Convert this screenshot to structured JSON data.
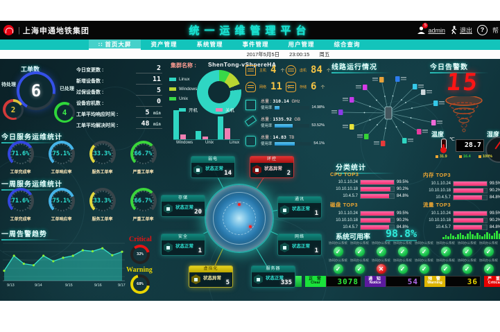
{
  "header": {
    "org": "上海申通地铁集团",
    "sep": "|",
    "title": "统一运维管理平台",
    "user": "admin",
    "badge": "5",
    "logout": "退出",
    "help": "帮",
    "help_q": "?"
  },
  "nav": {
    "home_icon": "∷",
    "tabs": [
      {
        "label": "首页大屏",
        "active": true
      },
      {
        "label": "资产管理",
        "active": false
      },
      {
        "label": "系统管理",
        "active": false
      },
      {
        "label": "事件管理",
        "active": false
      },
      {
        "label": "用户管理",
        "active": false
      },
      {
        "label": "综合查询",
        "active": false
      }
    ],
    "date": "2017年5月5日",
    "time": "23:00:15",
    "weekday": "周五"
  },
  "workorder": {
    "title": "工单数",
    "total": "6",
    "pending_label": "待处理",
    "pending": "2",
    "done_label": "已处理",
    "done": "4"
  },
  "kpis": [
    {
      "label": "今日变更数 :",
      "value": "2",
      "unit": ""
    },
    {
      "label": "新增设备数 :",
      "value": "11",
      "unit": ""
    },
    {
      "label": "过保设备数 :",
      "value": "5",
      "unit": ""
    },
    {
      "label": "设备宕机数 :",
      "value": "0",
      "unit": ""
    },
    {
      "label": "工单平均响应时间 :",
      "value": "5",
      "unit": "min"
    },
    {
      "label": "工单平均解决时间 :",
      "value": "48",
      "unit": "min"
    }
  ],
  "today_stats": {
    "title": "今日服务运维统计",
    "gauges": [
      {
        "value": "71.6%",
        "label": "工单完成率",
        "color": "#3347e0",
        "pct": 71.6
      },
      {
        "value": "75.1%",
        "label": "工单响应率",
        "color": "#45b4e8",
        "pct": 75.1
      },
      {
        "value": "33.3%",
        "label": "服务工单率",
        "color": "#e3d83c",
        "pct": 33.3
      },
      {
        "value": "66.7%",
        "label": "严重工单率",
        "color": "#3bd63b",
        "pct": 66.7
      }
    ]
  },
  "week_stats": {
    "title": "一周服务运维统计",
    "gauges": [
      {
        "value": "71.6%",
        "label": "工单完成率",
        "color": "#3347e0",
        "pct": 71.6
      },
      {
        "value": "75.1%",
        "label": "工单响应率",
        "color": "#45b4e8",
        "pct": 75.1
      },
      {
        "value": "33.3%",
        "label": "服务工单率",
        "color": "#e3d83c",
        "pct": 33.3
      },
      {
        "value": "66.7%",
        "label": "严重工单率",
        "color": "#3bd63b",
        "pct": 66.7
      }
    ]
  },
  "trend": {
    "title": "一周告警趋势",
    "type": "area",
    "labels": [
      "9/13",
      "9/14",
      "9/15",
      "9/16",
      "9/17"
    ],
    "values": [
      2,
      5,
      3.4,
      3.1,
      5,
      3.9,
      4.6,
      5,
      6.1,
      5.9,
      6.5,
      5.1,
      5.8
    ]
  },
  "rings": {
    "critical_label": "Critical",
    "critical": "32%",
    "critical_pct": 32,
    "critical_color": "#e81313",
    "warning_label": "Warning",
    "warning": "68%",
    "warning_pct": 68,
    "warning_color": "#e8d500"
  },
  "cluster": {
    "name_label": "集群名称 :",
    "name": "ShenTong-vShpereHA",
    "legend": [
      {
        "label": "Linux",
        "color": "#2fd6c3"
      },
      {
        "label": "Windows",
        "color": "#b9d631"
      },
      {
        "label": "Unix",
        "color": "#38d848"
      }
    ],
    "donut": {
      "type": "pie",
      "slices": [
        {
          "label": "Unix",
          "value": 8,
          "color": "#38d848"
        },
        {
          "label": "Windows",
          "value": 11,
          "color": "#b9d631"
        },
        {
          "label": "关机",
          "value": 4,
          "color": "#11333b"
        },
        {
          "label": "Linux",
          "value": 77,
          "color": "#2fd6c3"
        }
      ]
    },
    "bar_legend": [
      {
        "label": "开机",
        "color": "#2fd6c3"
      },
      {
        "label": "关机",
        "color": "#ef7fb2"
      }
    ],
    "bars": {
      "type": "bar",
      "categories": [
        "Windows",
        "Unix",
        "Linux"
      ],
      "series": [
        {
          "name": "开机",
          "color": "#2fd6c3",
          "values": [
            42,
            12,
            33
          ]
        },
        {
          "name": "关机",
          "color": "#ef7fb2",
          "values": [
            7,
            4,
            16
          ]
        }
      ]
    },
    "counts": [
      {
        "label": "主机",
        "value": "4",
        "unit": "个",
        "icon": "host-icon",
        "shape": ""
      },
      {
        "label": "虚机",
        "value": "84",
        "unit": "个",
        "icon": "cloud-icon",
        "shape": "cloud"
      },
      {
        "label": "网络",
        "value": "11",
        "unit": "个",
        "icon": "network-icon",
        "shape": "round"
      },
      {
        "label": "存储",
        "value": "6",
        "unit": "个",
        "icon": "storage-icon",
        "shape": "db"
      }
    ],
    "resources": [
      {
        "icon": "cpu-icon",
        "total_label": "总量 :",
        "total": "310.14",
        "unit": "GHz",
        "usage_label": "使用率",
        "usage": "14.98%",
        "pct": 15
      },
      {
        "icon": "memory-icon",
        "total_label": "总量 :",
        "total": "1535.92",
        "unit": "GB",
        "usage_label": "使用率",
        "usage": "53.52%",
        "pct": 53
      },
      {
        "icon": "disk-icon",
        "total_label": "总量 :",
        "total": "14.83",
        "unit": "TB",
        "usage_label": "使用率",
        "usage": "54.1%",
        "pct": 54
      }
    ]
  },
  "topology": {
    "nodes": [
      {
        "title": "弱电",
        "status": "状态正常",
        "value": "14",
        "state": "normal"
      },
      {
        "title": "环控",
        "status": "状态异常",
        "value": "2",
        "state": "alarm"
      },
      {
        "title": "存储",
        "status": "状态正常",
        "value": "20",
        "state": "normal"
      },
      {
        "title": "通讯",
        "status": "状态正常",
        "value": "1",
        "state": "normal"
      },
      {
        "title": "安全",
        "status": "状态正常",
        "value": "1",
        "state": "normal"
      },
      {
        "title": "网络",
        "status": "状态正常",
        "value": "1",
        "state": "normal"
      },
      {
        "title": "虚拟化",
        "status": "状态异常",
        "value": "5",
        "state": "warn"
      },
      {
        "title": "服务器",
        "status": "状态正常",
        "value": "335",
        "state": "normal"
      }
    ]
  },
  "lines_panel": {
    "title": "线路运行情况",
    "node_colors": [
      "#e8a23a",
      "#2d7df0",
      "#d63ae8",
      "#35c8e8",
      "#c23ae8",
      "#8a3ae8",
      "#e8e23a",
      "#35d435",
      "#e83a3a",
      "#2fd6c3",
      "#e83a9e",
      "#f06ad8",
      "#35c8e8",
      "#cfd8dc"
    ]
  },
  "alarm_panel": {
    "title": "今日告警数",
    "value": "15"
  },
  "environment": {
    "temp_label": "温度",
    "humidity_label": "湿度",
    "temp": "28.7",
    "unit": "℃",
    "stats": [
      {
        "value": "31.9",
        "color": "#e3d83c"
      },
      {
        "value": "16.4",
        "color": "#3bd63b"
      },
      {
        "value": "100%",
        "color": "#e3d83c"
      }
    ]
  },
  "category": {
    "title": "分类统计",
    "panels": [
      {
        "title": "CPU TOP3",
        "rows": [
          {
            "label": "10.1.10.24",
            "value": "99.5%",
            "pct": 99.5
          },
          {
            "label": "10.10.10.18",
            "value": "90.2%",
            "pct": 90.2
          },
          {
            "label": "10.4.5.7",
            "value": "84.8%",
            "pct": 84.8
          }
        ]
      },
      {
        "title": "内存 TOP3",
        "rows": [
          {
            "label": "10.1.10.24",
            "value": "99.5%",
            "pct": 99.5
          },
          {
            "label": "10.10.10.18",
            "value": "90.2%",
            "pct": 90.2
          },
          {
            "label": "10.4.5.7",
            "value": "84.8%",
            "pct": 84.8
          }
        ]
      },
      {
        "title": "磁盘 TOP3",
        "rows": [
          {
            "label": "10.1.10.24",
            "value": "99.5%",
            "pct": 99.5
          },
          {
            "label": "10.10.10.18",
            "value": "90.2%",
            "pct": 90.2
          },
          {
            "label": "10.4.5.7",
            "value": "84.8%",
            "pct": 84.8
          }
        ]
      },
      {
        "title": "流量 TOP3",
        "rows": [
          {
            "label": "10.1.10.24",
            "value": "99.5%",
            "pct": 99.5
          },
          {
            "label": "10.10.10.18",
            "value": "90.2%",
            "pct": 90.2
          },
          {
            "label": "10.4.5.7",
            "value": "84.8%",
            "pct": 84.8
          }
        ]
      }
    ]
  },
  "availability": {
    "label": "系统可用率",
    "value": "98.8%"
  },
  "systems": {
    "rows": [
      [
        {
          "label": "协同办公系统",
          "ok": true
        },
        {
          "label": "协同办公系统",
          "ok": true
        },
        {
          "label": "协同办公系统",
          "ok": true
        },
        {
          "label": "协同办公系统",
          "ok": true
        },
        {
          "label": "协同办公系统",
          "ok": true
        },
        {
          "label": "协同办公系统",
          "ok": true
        },
        {
          "label": "协同办公系统",
          "ok": true
        },
        {
          "label": "协同办公系统",
          "ok": true
        }
      ],
      [
        {
          "label": "协同办公系统",
          "ok": true
        },
        {
          "label": "协同办公系统",
          "ok": true
        },
        {
          "label": "协同办公系统",
          "ok": false
        },
        {
          "label": "协同办公系统",
          "ok": true
        },
        {
          "label": "协同办公系统",
          "ok": true
        },
        {
          "label": "协同办公系统",
          "ok": true
        },
        {
          "label": "协同办公系统",
          "ok": true
        },
        {
          "label": "协同办公系统",
          "ok": true
        }
      ]
    ],
    "ok_glyph": "✓",
    "err_glyph": "✕"
  },
  "ticker": {
    "segments": [
      {
        "zh": "正 常",
        "en": "Clear",
        "value": "3078",
        "bg": "#1ae23a",
        "fg": "#052a0c",
        "digit": "#2fe83a"
      },
      {
        "zh": "通 知",
        "en": "Notice",
        "value": "54",
        "bg": "#5b1a9e",
        "fg": "#ffffff",
        "digit": "#b06ae8"
      },
      {
        "zh": "预 警",
        "en": "Warning",
        "value": "36",
        "bg": "#ddb400",
        "fg": "#ffffff",
        "digit": "#e8d500"
      },
      {
        "zh": "严 重",
        "en": "Critical",
        "value": "",
        "bg": "#e60000",
        "fg": "#ffffff",
        "digit": "#ff3030"
      }
    ]
  }
}
